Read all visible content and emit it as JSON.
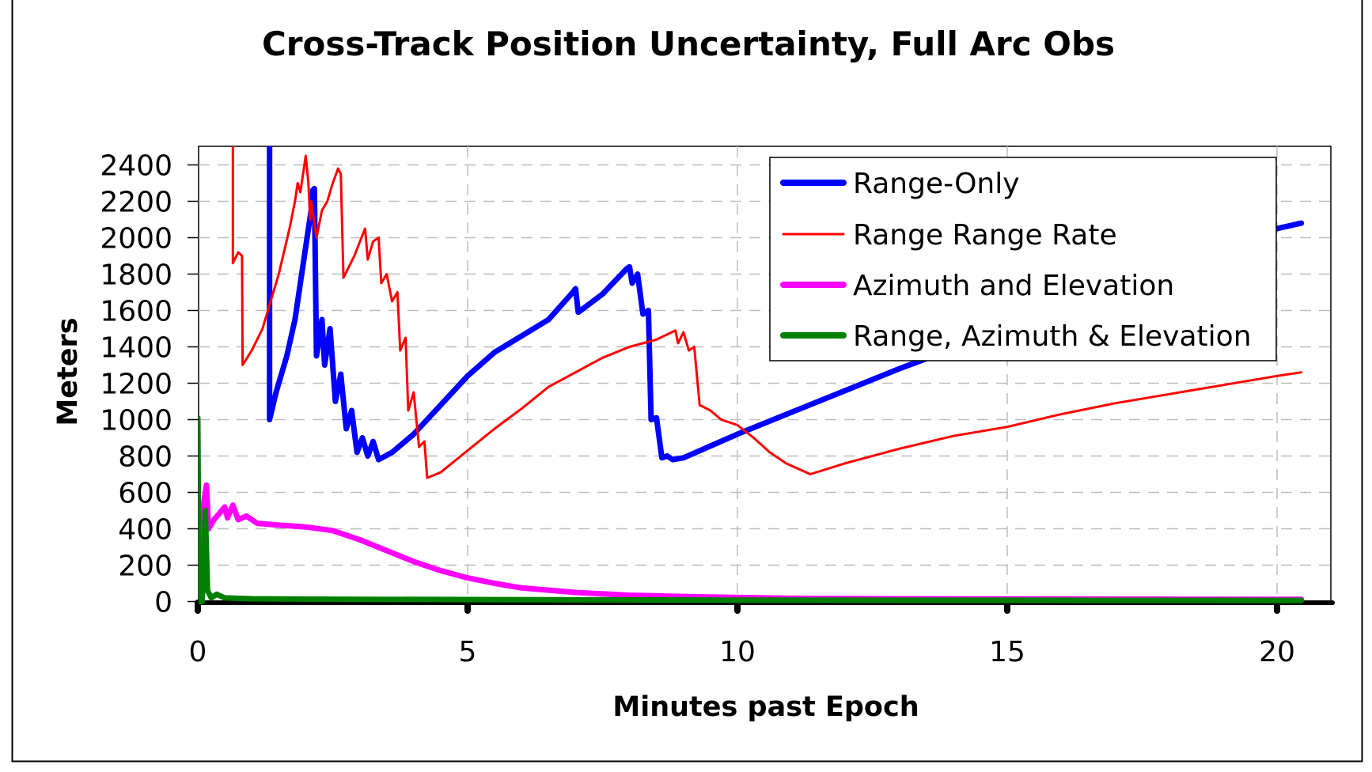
{
  "chart_data": {
    "type": "line",
    "title": "Cross-Track Position Uncertainty, Full Arc Obs",
    "xlabel": "Minutes past Epoch",
    "ylabel": "Meters",
    "xlim": [
      0,
      21
    ],
    "ylim": [
      0,
      2500
    ],
    "x_ticks": [
      "0",
      "5",
      "10",
      "15",
      "20"
    ],
    "y_ticks": [
      "0",
      "200",
      "400",
      "600",
      "800",
      "1000",
      "1200",
      "1400",
      "1600",
      "1800",
      "2000",
      "2200",
      "2400"
    ],
    "grid": true,
    "legend_position": "upper right (inside)",
    "legend": [
      {
        "name": "Range-Only",
        "color": "#0000ff"
      },
      {
        "name": "Range Range Rate",
        "color": "#ff0000"
      },
      {
        "name": "Azimuth and Elevation",
        "color": "#ff00ff"
      },
      {
        "name": "Range, Azimuth & Elevation",
        "color": "#008000"
      }
    ],
    "series": [
      {
        "name": "Range-Only",
        "color": "#0000ff",
        "width": 7,
        "points": [
          [
            1.33,
            2550
          ],
          [
            1.33,
            1000
          ],
          [
            1.45,
            1150
          ],
          [
            1.55,
            1250
          ],
          [
            1.65,
            1350
          ],
          [
            1.8,
            1550
          ],
          [
            1.95,
            1850
          ],
          [
            2.05,
            2050
          ],
          [
            2.1,
            2150
          ],
          [
            2.13,
            2260
          ],
          [
            2.16,
            2270
          ],
          [
            2.2,
            1350
          ],
          [
            2.3,
            1550
          ],
          [
            2.35,
            1300
          ],
          [
            2.45,
            1500
          ],
          [
            2.55,
            1100
          ],
          [
            2.65,
            1250
          ],
          [
            2.75,
            950
          ],
          [
            2.85,
            1050
          ],
          [
            2.95,
            820
          ],
          [
            3.05,
            900
          ],
          [
            3.15,
            800
          ],
          [
            3.25,
            880
          ],
          [
            3.35,
            780
          ],
          [
            3.6,
            820
          ],
          [
            4.0,
            920
          ],
          [
            4.5,
            1080
          ],
          [
            5.0,
            1240
          ],
          [
            5.5,
            1370
          ],
          [
            6.0,
            1460
          ],
          [
            6.5,
            1550
          ],
          [
            6.95,
            1700
          ],
          [
            7.0,
            1720
          ],
          [
            7.05,
            1590
          ],
          [
            7.5,
            1690
          ],
          [
            7.95,
            1830
          ],
          [
            8.0,
            1840
          ],
          [
            8.05,
            1750
          ],
          [
            8.15,
            1800
          ],
          [
            8.25,
            1580
          ],
          [
            8.35,
            1600
          ],
          [
            8.4,
            1000
          ],
          [
            8.5,
            1010
          ],
          [
            8.6,
            790
          ],
          [
            8.7,
            800
          ],
          [
            8.8,
            780
          ],
          [
            9.0,
            790
          ],
          [
            10.0,
            920
          ],
          [
            11.0,
            1040
          ],
          [
            12.0,
            1160
          ],
          [
            13.0,
            1280
          ],
          [
            14.0,
            1390
          ],
          [
            15.0,
            1510
          ],
          [
            16.0,
            1620
          ],
          [
            17.0,
            1740
          ],
          [
            18.0,
            1850
          ],
          [
            19.0,
            1960
          ],
          [
            20.0,
            2050
          ],
          [
            20.45,
            2080
          ]
        ]
      },
      {
        "name": "Range Range Rate",
        "color": "#ff0000",
        "width": 3,
        "points": [
          [
            0.65,
            2550
          ],
          [
            0.65,
            1860
          ],
          [
            0.75,
            1920
          ],
          [
            0.82,
            1900
          ],
          [
            0.83,
            1300
          ],
          [
            1.0,
            1380
          ],
          [
            1.2,
            1500
          ],
          [
            1.5,
            1800
          ],
          [
            1.7,
            2050
          ],
          [
            1.8,
            2200
          ],
          [
            1.85,
            2300
          ],
          [
            1.9,
            2250
          ],
          [
            2.0,
            2450
          ],
          [
            2.05,
            2300
          ],
          [
            2.08,
            2100
          ],
          [
            2.1,
            2200
          ],
          [
            2.2,
            2000
          ],
          [
            2.3,
            2150
          ],
          [
            2.4,
            2200
          ],
          [
            2.5,
            2300
          ],
          [
            2.6,
            2380
          ],
          [
            2.65,
            2350
          ],
          [
            2.7,
            1780
          ],
          [
            2.9,
            1900
          ],
          [
            3.1,
            2050
          ],
          [
            3.15,
            1880
          ],
          [
            3.25,
            1980
          ],
          [
            3.35,
            2000
          ],
          [
            3.4,
            1750
          ],
          [
            3.5,
            1800
          ],
          [
            3.6,
            1650
          ],
          [
            3.7,
            1700
          ],
          [
            3.75,
            1380
          ],
          [
            3.85,
            1450
          ],
          [
            3.9,
            1050
          ],
          [
            4.0,
            1150
          ],
          [
            4.1,
            850
          ],
          [
            4.2,
            880
          ],
          [
            4.25,
            680
          ],
          [
            4.5,
            710
          ],
          [
            5.0,
            830
          ],
          [
            5.5,
            950
          ],
          [
            6.0,
            1060
          ],
          [
            6.5,
            1180
          ],
          [
            7.0,
            1260
          ],
          [
            7.5,
            1340
          ],
          [
            8.0,
            1400
          ],
          [
            8.5,
            1440
          ],
          [
            8.85,
            1490
          ],
          [
            8.9,
            1420
          ],
          [
            9.0,
            1480
          ],
          [
            9.1,
            1380
          ],
          [
            9.2,
            1400
          ],
          [
            9.3,
            1080
          ],
          [
            9.5,
            1050
          ],
          [
            9.7,
            1000
          ],
          [
            10.0,
            970
          ],
          [
            10.3,
            900
          ],
          [
            10.6,
            820
          ],
          [
            10.9,
            760
          ],
          [
            11.2,
            720
          ],
          [
            11.35,
            700
          ],
          [
            12.0,
            760
          ],
          [
            13.0,
            840
          ],
          [
            14.0,
            910
          ],
          [
            15.0,
            960
          ],
          [
            16.0,
            1030
          ],
          [
            17.0,
            1090
          ],
          [
            18.0,
            1140
          ],
          [
            19.0,
            1190
          ],
          [
            20.0,
            1240
          ],
          [
            20.45,
            1260
          ]
        ]
      },
      {
        "name": "Azimuth and Elevation",
        "color": "#ff00ff",
        "width": 7,
        "points": [
          [
            0.0,
            0
          ],
          [
            0.05,
            380
          ],
          [
            0.12,
            560
          ],
          [
            0.16,
            640
          ],
          [
            0.2,
            400
          ],
          [
            0.3,
            450
          ],
          [
            0.5,
            520
          ],
          [
            0.55,
            460
          ],
          [
            0.65,
            530
          ],
          [
            0.75,
            450
          ],
          [
            0.9,
            470
          ],
          [
            1.1,
            430
          ],
          [
            1.5,
            420
          ],
          [
            2.0,
            410
          ],
          [
            2.5,
            390
          ],
          [
            3.0,
            340
          ],
          [
            3.5,
            280
          ],
          [
            4.0,
            220
          ],
          [
            4.5,
            170
          ],
          [
            5.0,
            130
          ],
          [
            5.5,
            100
          ],
          [
            6.0,
            75
          ],
          [
            7.0,
            50
          ],
          [
            8.0,
            35
          ],
          [
            9.0,
            28
          ],
          [
            10.0,
            22
          ],
          [
            11.0,
            18
          ],
          [
            13.0,
            15
          ],
          [
            15.0,
            14
          ],
          [
            20.45,
            12
          ]
        ]
      },
      {
        "name": "Range, Azimuth & Elevation",
        "color": "#008000",
        "width": 7,
        "points": [
          [
            0.0,
            1010
          ],
          [
            0.02,
            0
          ],
          [
            0.08,
            0
          ],
          [
            0.14,
            500
          ],
          [
            0.18,
            60
          ],
          [
            0.25,
            20
          ],
          [
            0.35,
            40
          ],
          [
            0.5,
            20
          ],
          [
            1.0,
            15
          ],
          [
            3.0,
            12
          ],
          [
            10.0,
            8
          ],
          [
            20.45,
            6
          ]
        ]
      }
    ]
  }
}
